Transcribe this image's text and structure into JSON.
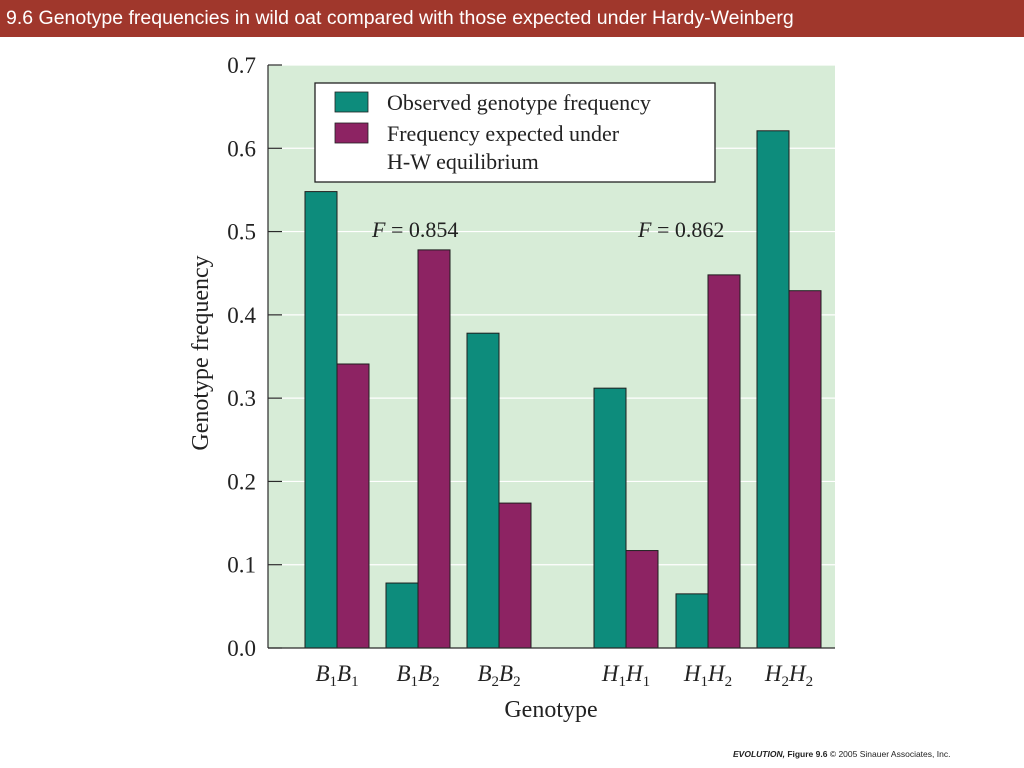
{
  "slide": {
    "title": "9.6  Genotype frequencies in wild oat compared with those expected under Hardy-Weinberg"
  },
  "credit": {
    "book": "EVOLUTION,",
    "figure": " Figure 9.6",
    "rest": "  © 2005 Sinauer Associates, Inc."
  },
  "colors": {
    "title_bar": "#a0372c",
    "plot_bg": "#d7ecd7",
    "observed": "#0d8c7c",
    "expected": "#8d2363"
  },
  "chart_data": {
    "type": "bar",
    "xlabel": "Genotype",
    "ylabel": "Genotype frequency",
    "ylim": [
      0,
      0.7
    ],
    "yticks": [
      "0.0",
      "0.1",
      "0.2",
      "0.3",
      "0.4",
      "0.5",
      "0.6",
      "0.7"
    ],
    "grid": true,
    "legend_position": "top",
    "categories": [
      {
        "base1": "B",
        "sub1": "1",
        "base2": "B",
        "sub2": "1"
      },
      {
        "base1": "B",
        "sub1": "1",
        "base2": "B",
        "sub2": "2"
      },
      {
        "base1": "B",
        "sub1": "2",
        "base2": "B",
        "sub2": "2"
      },
      {
        "base1": "H",
        "sub1": "1",
        "base2": "H",
        "sub2": "1"
      },
      {
        "base1": "H",
        "sub1": "1",
        "base2": "H",
        "sub2": "2"
      },
      {
        "base1": "H",
        "sub1": "2",
        "base2": "H",
        "sub2": "2"
      }
    ],
    "series": [
      {
        "name": "Observed genotype frequency",
        "values": [
          0.548,
          0.078,
          0.378,
          0.312,
          0.065,
          0.621
        ]
      },
      {
        "name": "Frequency expected under H-W equilibrium",
        "name_lines": [
          "Frequency expected under",
          "H-W equilibrium"
        ],
        "values": [
          0.341,
          0.478,
          0.174,
          0.117,
          0.448,
          0.429
        ]
      }
    ],
    "annotations": [
      {
        "italic": "F",
        "text": " = 0.854"
      },
      {
        "italic": "F",
        "text": " = 0.862"
      }
    ]
  }
}
